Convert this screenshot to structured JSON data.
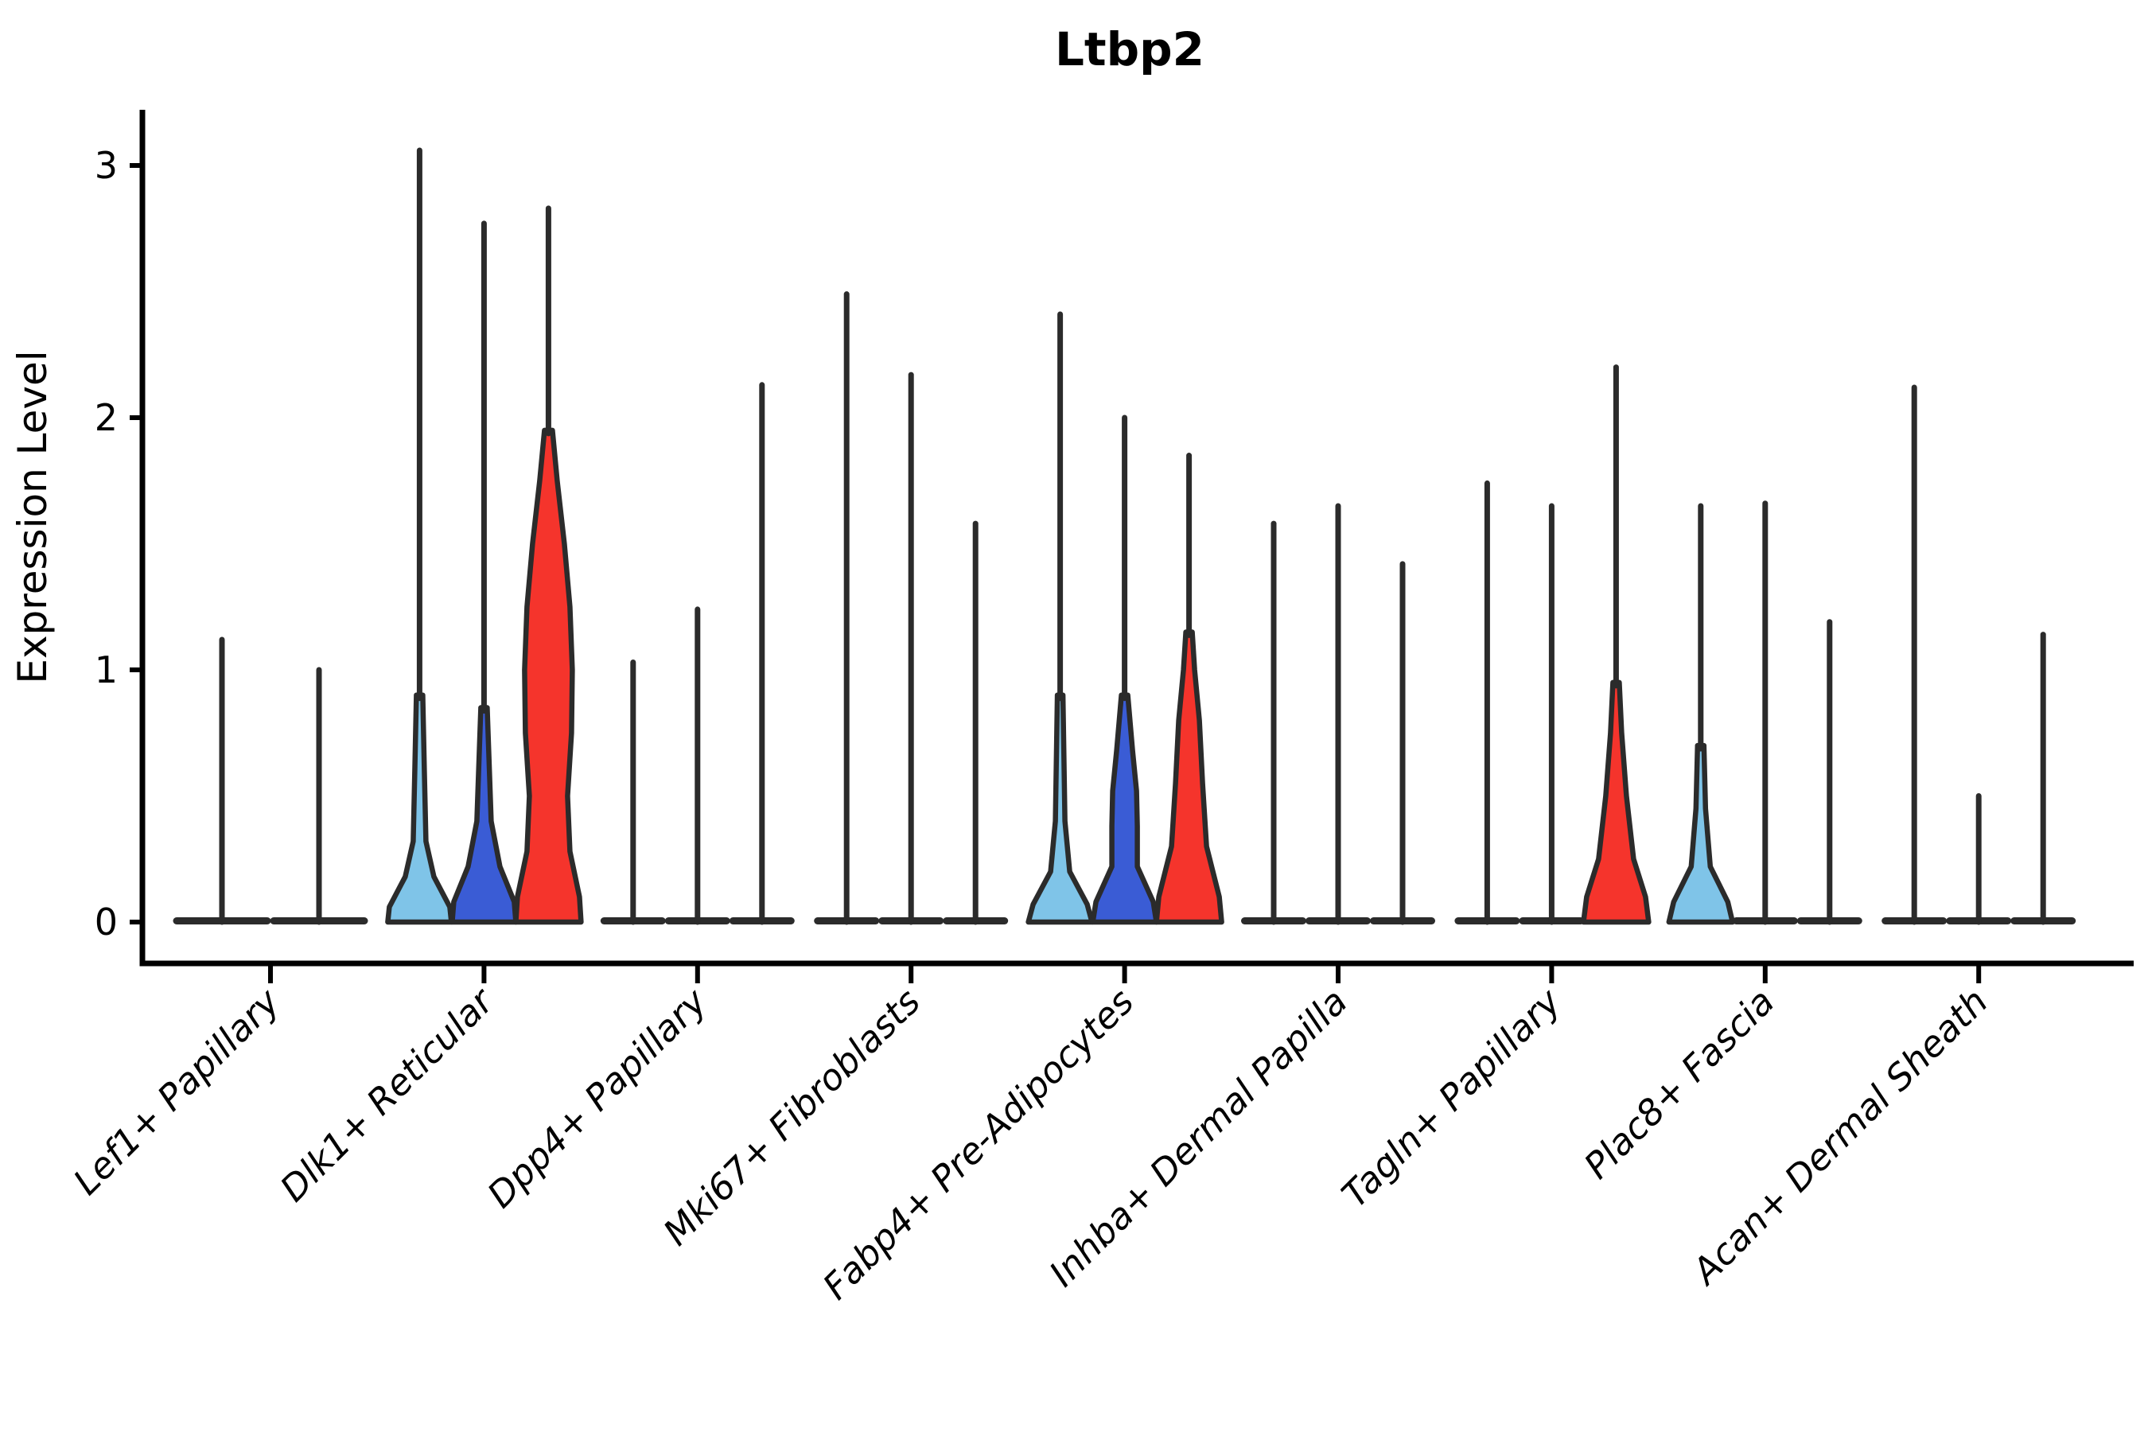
{
  "title": "Ltbp2",
  "y_axis": {
    "label": "Expression Level",
    "tick_labels": [
      "0",
      "1",
      "2",
      "3"
    ]
  },
  "colors": {
    "lightblue": "#7FC4E8",
    "darkblue": "#3A5CD5",
    "red": "#F5342C",
    "outline": "#2B2B2B",
    "axis": "#000000"
  },
  "chart_data": {
    "type": "violin",
    "title": "Ltbp2",
    "ylabel": "Expression Level",
    "ylim": [
      0,
      3.2
    ],
    "yticks": [
      0,
      1,
      2,
      3
    ],
    "grid": false,
    "legend": "none",
    "series_colors": [
      "#7FC4E8",
      "#3A5CD5",
      "#F5342C"
    ],
    "categories": [
      "Lef1+ Papillary",
      "Dlk1+ Reticular",
      "Dpp4+ Papillary",
      "Mki67+ Fibroblasts",
      "Fabp4+ Pre-Adipocytes",
      "Inhba+ Dermal Papilla",
      "Tagln+ Papillary",
      "Plac8+ Fascia",
      "Acan+ Dermal Sheath"
    ],
    "groups": [
      {
        "category": "Lef1+ Papillary",
        "violins": [
          {
            "max": 1.12,
            "fill": null,
            "profile": null
          },
          {
            "max": 1.0,
            "fill": null,
            "profile": null
          }
        ]
      },
      {
        "category": "Dlk1+ Reticular",
        "violins": [
          {
            "max": 3.06,
            "fill": "lightblue",
            "profile": [
              [
                0,
                40
              ],
              [
                0.06,
                38
              ],
              [
                0.18,
                18
              ],
              [
                0.32,
                8
              ],
              [
                0.6,
                6
              ],
              [
                0.9,
                4
              ]
            ]
          },
          {
            "max": 2.77,
            "fill": "darkblue",
            "profile": [
              [
                0,
                40
              ],
              [
                0.08,
                38
              ],
              [
                0.22,
                20
              ],
              [
                0.4,
                9
              ],
              [
                0.58,
                7
              ],
              [
                0.85,
                4
              ]
            ]
          },
          {
            "max": 2.83,
            "fill": "red",
            "profile": [
              [
                0,
                41
              ],
              [
                0.1,
                39
              ],
              [
                0.28,
                27
              ],
              [
                0.5,
                24
              ],
              [
                0.75,
                29
              ],
              [
                1.0,
                30
              ],
              [
                1.25,
                27
              ],
              [
                1.5,
                20
              ],
              [
                1.75,
                11
              ],
              [
                1.95,
                5
              ]
            ]
          }
        ]
      },
      {
        "category": "Dpp4+ Papillary",
        "violins": [
          {
            "max": 1.03,
            "fill": null,
            "profile": null
          },
          {
            "max": 1.24,
            "fill": null,
            "profile": null
          },
          {
            "max": 2.13,
            "fill": null,
            "profile": null
          }
        ]
      },
      {
        "category": "Mki67+ Fibroblasts",
        "violins": [
          {
            "max": 2.49,
            "fill": null,
            "profile": null
          },
          {
            "max": 2.17,
            "fill": null,
            "profile": null
          },
          {
            "max": 1.58,
            "fill": null,
            "profile": null
          }
        ]
      },
      {
        "category": "Fabp4+ Pre-Adipocytes",
        "violins": [
          {
            "max": 2.41,
            "fill": "lightblue",
            "profile": [
              [
                0,
                40
              ],
              [
                0.07,
                34
              ],
              [
                0.2,
                12
              ],
              [
                0.4,
                6
              ],
              [
                0.6,
                5
              ],
              [
                0.9,
                3.5
              ]
            ]
          },
          {
            "max": 2.0,
            "fill": "darkblue",
            "profile": [
              [
                0,
                40
              ],
              [
                0.08,
                36
              ],
              [
                0.22,
                16
              ],
              [
                0.38,
                16
              ],
              [
                0.52,
                15
              ],
              [
                0.68,
                10
              ],
              [
                0.9,
                4
              ]
            ]
          },
          {
            "max": 1.85,
            "fill": "red",
            "profile": [
              [
                0,
                41
              ],
              [
                0.1,
                38
              ],
              [
                0.3,
                22
              ],
              [
                0.55,
                17
              ],
              [
                0.8,
                13
              ],
              [
                1.0,
                7
              ],
              [
                1.15,
                4
              ]
            ]
          }
        ]
      },
      {
        "category": "Inhba+ Dermal Papilla",
        "violins": [
          {
            "max": 1.58,
            "fill": null,
            "profile": null
          },
          {
            "max": 1.65,
            "fill": null,
            "profile": null
          },
          {
            "max": 1.42,
            "fill": null,
            "profile": null
          }
        ]
      },
      {
        "category": "Tagln+ Papillary",
        "violins": [
          {
            "max": 1.74,
            "fill": null,
            "profile": null
          },
          {
            "max": 1.65,
            "fill": null,
            "profile": null
          },
          {
            "max": 2.2,
            "fill": "red",
            "profile": [
              [
                0,
                41
              ],
              [
                0.1,
                37
              ],
              [
                0.25,
                22
              ],
              [
                0.5,
                13
              ],
              [
                0.75,
                7
              ],
              [
                0.95,
                4
              ]
            ]
          }
        ]
      },
      {
        "category": "Plac8+ Fascia",
        "violins": [
          {
            "max": 1.65,
            "fill": "lightblue",
            "profile": [
              [
                0,
                40
              ],
              [
                0.08,
                34
              ],
              [
                0.22,
                12
              ],
              [
                0.45,
                6
              ],
              [
                0.7,
                4
              ]
            ]
          },
          {
            "max": 1.66,
            "fill": null,
            "profile": null
          },
          {
            "max": 1.19,
            "fill": null,
            "profile": null
          }
        ]
      },
      {
        "category": "Acan+ Dermal Sheath",
        "violins": [
          {
            "max": 2.12,
            "fill": null,
            "profile": null
          },
          {
            "max": 0.5,
            "fill": null,
            "profile": null
          },
          {
            "max": 1.14,
            "fill": null,
            "profile": null
          }
        ]
      }
    ]
  }
}
